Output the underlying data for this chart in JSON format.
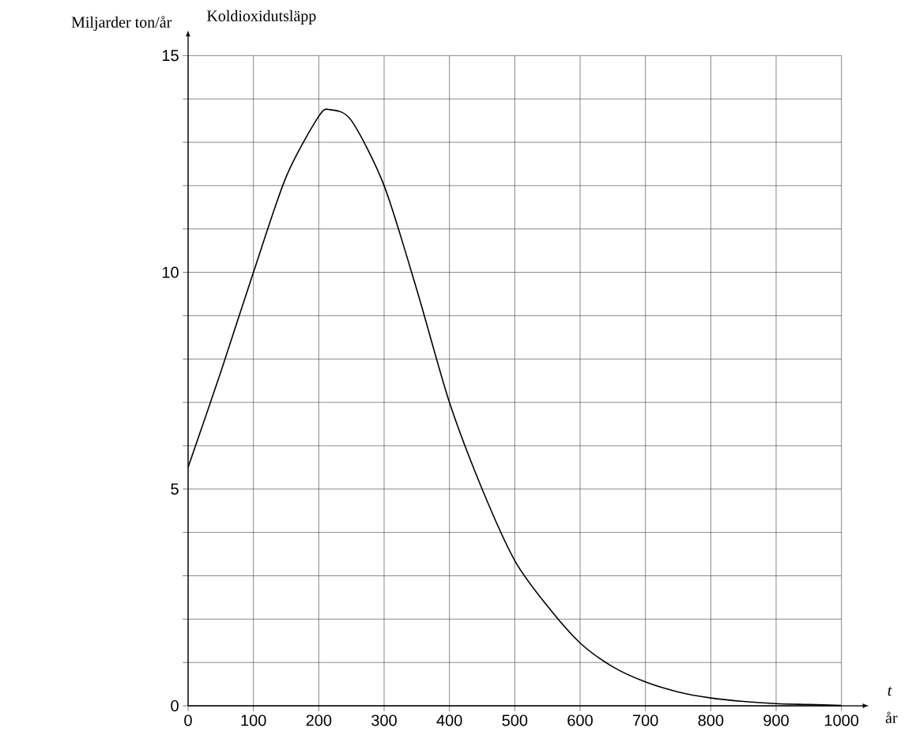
{
  "chart_data": {
    "type": "line",
    "title": "Koldioxidutsläpp",
    "ylabel": "Miljarder ton/år",
    "xlabel": "t",
    "annotations": [
      "år"
    ],
    "x": [
      0,
      50,
      100,
      150,
      200,
      218,
      250,
      300,
      350,
      400,
      450,
      500,
      550,
      600,
      650,
      700,
      750,
      800,
      850,
      900,
      950,
      1000
    ],
    "values": [
      5.5,
      7.7,
      10.0,
      12.2,
      13.6,
      13.75,
      13.5,
      12.0,
      9.6,
      7.0,
      5.0,
      3.35,
      2.3,
      1.45,
      0.9,
      0.55,
      0.32,
      0.18,
      0.1,
      0.05,
      0.03,
      0.01
    ],
    "color": "#000000",
    "xlim": [
      0,
      1000
    ],
    "ylim": [
      0,
      15
    ],
    "xticks": [
      0,
      100,
      200,
      300,
      400,
      500,
      600,
      700,
      800,
      900,
      1000
    ],
    "yticks": [
      0,
      {
        "value": 1,
        "label": null
      },
      {
        "value": 2,
        "label": null
      },
      {
        "value": 3,
        "label": null
      },
      {
        "value": 4,
        "label": null
      },
      5,
      {
        "value": 6,
        "label": null
      },
      {
        "value": 7,
        "label": null
      },
      {
        "value": 8,
        "label": null
      },
      {
        "value": 9,
        "label": null
      },
      10,
      {
        "value": 11,
        "label": null
      },
      {
        "value": 12,
        "label": null
      },
      {
        "value": 13,
        "label": null
      },
      {
        "value": 14,
        "label": null
      },
      15
    ],
    "grid": true
  }
}
